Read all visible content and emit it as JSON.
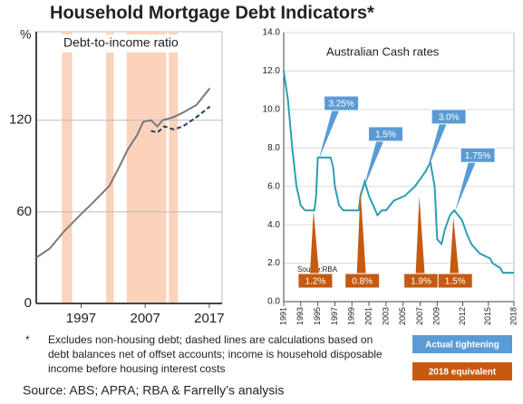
{
  "title": "Household Mortgage Debt Indicators*",
  "footnote": {
    "marker": "*",
    "lines": [
      "Excludes non-housing debt; dashed lines are calculations based on",
      "debt balances net of offset accounts; income is household disposable",
      "income before housing interest costs"
    ]
  },
  "source": "Source: ABS; APRA; RBA & Farrelly’s analysis",
  "chart_data": [
    {
      "type": "line",
      "title": "Debt-to-income ratio",
      "y_label": "%",
      "xlim": [
        1990,
        2019
      ],
      "xticks": [
        1997,
        2007,
        2017
      ],
      "ylim": [
        0,
        178
      ],
      "yticks": [
        0,
        60,
        120
      ],
      "grid": true,
      "shaded_periods": [
        [
          1994,
          1995.6
        ],
        [
          2000.9,
          2002.1
        ],
        [
          2004.1,
          2010.3
        ],
        [
          2010.7,
          2012.1
        ]
      ],
      "shade_color": "#fbd3bd",
      "series": [
        {
          "color": "#7a7a7a",
          "style": "solid",
          "x": [
            1990,
            1992.1,
            1994.3,
            1995,
            1997.1,
            1998.6,
            2000,
            2001.4,
            2002.9,
            2004.3,
            2005.7,
            2006.7,
            2007.9,
            2008.9,
            2009.7,
            2011.4,
            2012.9,
            2015,
            2017.1
          ],
          "values": [
            30,
            36,
            47,
            50,
            59,
            65,
            71,
            77,
            89,
            101,
            110,
            119,
            120,
            116,
            120,
            122,
            125,
            130,
            141
          ]
        },
        {
          "color": "#1f3f5e",
          "style": "dashed",
          "x": [
            2007.9,
            2008.9,
            2010,
            2011.4,
            2012.9,
            2015,
            2017.1
          ],
          "values": [
            113,
            112,
            116,
            114,
            116,
            122,
            129
          ]
        }
      ]
    },
    {
      "type": "line",
      "title": "Australian  Cash rates",
      "source_note": "Source:RBA",
      "xlim": [
        1991,
        2018
      ],
      "xticks": [
        1991,
        1993,
        1995,
        1997,
        1999,
        2001,
        2003,
        2005,
        2007,
        2009,
        2012,
        2015,
        2018
      ],
      "ylim": [
        0,
        14
      ],
      "yticks": [
        {
          "value": 0,
          "label": "0.0"
        },
        {
          "value": 2,
          "label": "2.0"
        },
        {
          "value": 4,
          "label": "4.0"
        },
        {
          "value": 6,
          "label": "6.0"
        },
        {
          "value": 8,
          "label": "8.0"
        },
        {
          "value": 10,
          "label": "10.0"
        },
        {
          "value": 12,
          "label": "12.0"
        },
        {
          "value": 14,
          "label": "14.0"
        }
      ],
      "grid": true,
      "series": [
        {
          "color": "#2b9fb3",
          "style": "solid",
          "x": [
            1991,
            1991.5,
            1992,
            1992.5,
            1993,
            1993.5,
            1994.6,
            1994.8,
            1995,
            1996.5,
            1996.8,
            1997,
            1997.5,
            1998,
            1999.8,
            2000,
            2000.5,
            2001,
            2001.5,
            2002,
            2002.5,
            2003,
            2003.9,
            2005.2,
            2006.4,
            2007.6,
            2008.2,
            2008.7,
            2009,
            2009.5,
            2009.9,
            2010.5,
            2011,
            2011.9,
            2012.5,
            2013,
            2013.5,
            2014,
            2015.2,
            2015.5,
            2016.4,
            2016.7,
            2018
          ],
          "values": [
            12,
            10.5,
            8,
            6,
            5,
            4.75,
            4.75,
            5.5,
            7.5,
            7.5,
            7,
            6,
            5,
            4.75,
            4.75,
            5.5,
            6.25,
            5.5,
            5,
            4.5,
            4.75,
            4.75,
            5.25,
            5.5,
            6,
            6.75,
            7.25,
            6,
            3.25,
            3,
            3.75,
            4.5,
            4.75,
            4.25,
            3.5,
            3,
            2.75,
            2.5,
            2.25,
            2,
            1.75,
            1.5,
            1.5
          ]
        }
      ],
      "callout_groups": [
        {
          "name": "Actual tightening",
          "color": "#5b9bd5",
          "direction": "up",
          "items": [
            {
              "label": "3.25%",
              "x": 1995.1,
              "y": 7.4
            },
            {
              "label": "1.5%",
              "x": 2000.3,
              "y": 5.8
            },
            {
              "label": "3.0%",
              "x": 2007.7,
              "y": 6.7
            },
            {
              "label": "1.75%",
              "x": 2011.1,
              "y": 4.7
            }
          ]
        },
        {
          "name": "2018 equivalent",
          "color": "#c55a11",
          "direction": "down",
          "items": [
            {
              "label": "1.2%",
              "x": 1994.5,
              "y": 4.75
            },
            {
              "label": "0.8%",
              "x": 2000,
              "y": 5.8
            },
            {
              "label": "1.9%",
              "x": 2006.9,
              "y": 5.5
            },
            {
              "label": "1.5%",
              "x": 2010.9,
              "y": 4.4
            }
          ]
        }
      ]
    }
  ]
}
